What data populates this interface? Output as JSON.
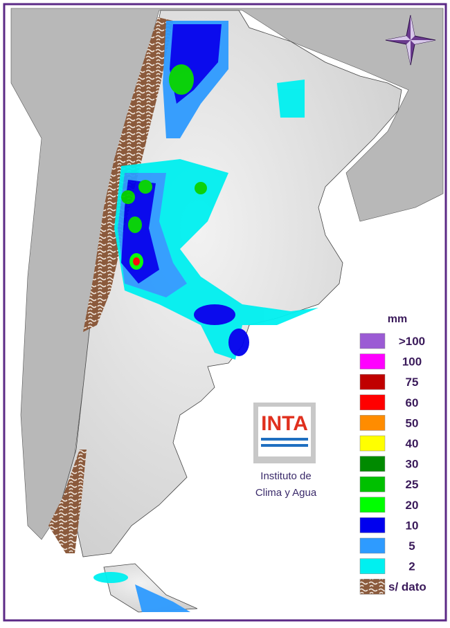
{
  "legend": {
    "title": "mm",
    "items": [
      {
        "label": ">100",
        "color": "#9b5bd4"
      },
      {
        "label": "100",
        "color": "#ff00ff"
      },
      {
        "label": "75",
        "color": "#c00000"
      },
      {
        "label": "60",
        "color": "#ff0000"
      },
      {
        "label": "50",
        "color": "#ff8c00"
      },
      {
        "label": "40",
        "color": "#ffff00"
      },
      {
        "label": "30",
        "color": "#008a00"
      },
      {
        "label": "25",
        "color": "#00c000"
      },
      {
        "label": "20",
        "color": "#00ff00"
      },
      {
        "label": "10",
        "color": "#0000ee"
      },
      {
        "label": "5",
        "color": "#2e9bff"
      },
      {
        "label": "2",
        "color": "#00f0f0"
      },
      {
        "label": "s/ dato",
        "color": "#8b5a3c"
      }
    ]
  },
  "logo": {
    "text": "INTA",
    "caption": [
      "Instituto de",
      "Clima y Agua"
    ]
  }
}
